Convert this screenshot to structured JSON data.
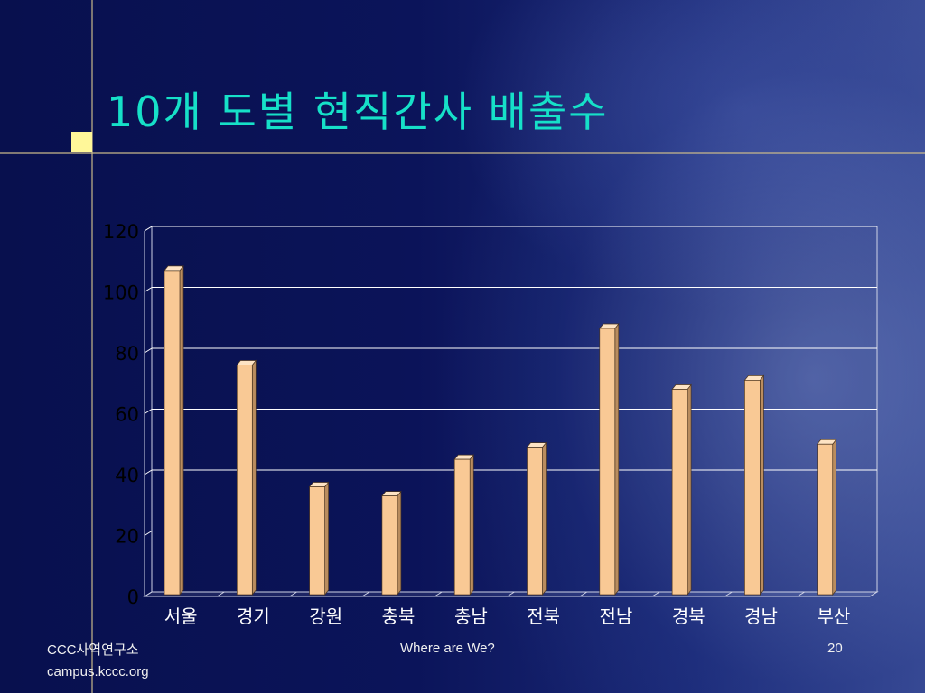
{
  "slide": {
    "title": "10개 도별 현직간사 배출수",
    "colors": {
      "background": "#0a0f4e",
      "title": "#16e0c8",
      "accent_square": "#fff799",
      "bar_fill": "#f9c995",
      "grid": "#ffffff"
    }
  },
  "chart_data": {
    "type": "bar",
    "categories": [
      "서울",
      "경기",
      "강원",
      "충북",
      "충남",
      "전북",
      "전남",
      "경북",
      "경남",
      "부산"
    ],
    "values": [
      107,
      76,
      36,
      33,
      45,
      49,
      88,
      68,
      71,
      50
    ],
    "ylim": [
      0,
      120
    ],
    "yticks": [
      0,
      20,
      40,
      60,
      80,
      100,
      120
    ],
    "grid": true,
    "legend": "none",
    "style": "3d-column"
  },
  "footer": {
    "left_line1": "CCC사역연구소",
    "left_line2": "campus.kccc.org",
    "center": "Where are We?",
    "page_number": "20"
  }
}
